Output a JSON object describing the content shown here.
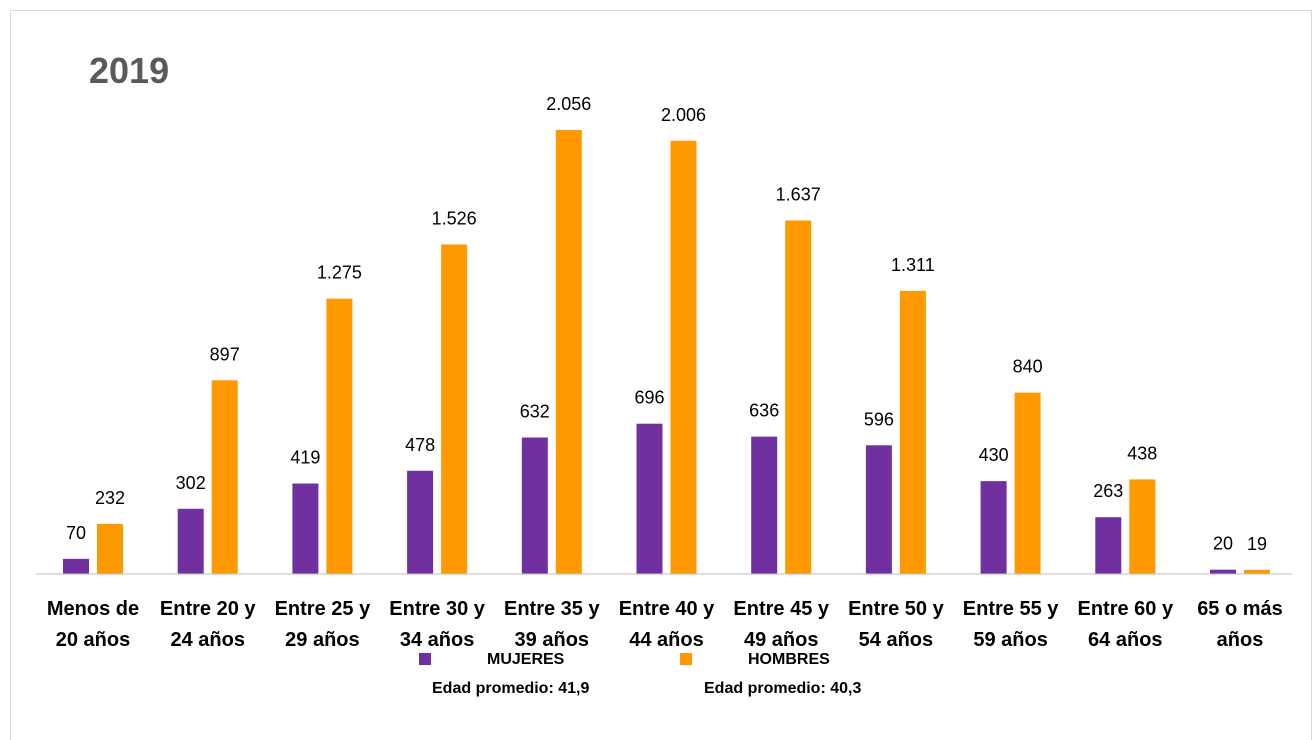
{
  "chart_data": {
    "type": "bar",
    "title": "2019",
    "categories": [
      [
        "Menos de",
        "20 años"
      ],
      [
        "Entre 20 y",
        "24 años"
      ],
      [
        "Entre 25 y",
        "29 años"
      ],
      [
        "Entre 30 y",
        "34 años"
      ],
      [
        "Entre 35 y",
        "39 años"
      ],
      [
        "Entre 40 y",
        "44 años"
      ],
      [
        "Entre 45 y",
        "49 años"
      ],
      [
        "Entre 50 y",
        "54 años"
      ],
      [
        "Entre 55 y",
        "59 años"
      ],
      [
        "Entre 60 y",
        "64 años"
      ],
      [
        "65 o más",
        "años"
      ]
    ],
    "series": [
      {
        "name": "MUJERES",
        "color": "#7030a0",
        "values": [
          70,
          302,
          419,
          478,
          632,
          696,
          636,
          596,
          430,
          263,
          20
        ],
        "labels": [
          "70",
          "302",
          "419",
          "478",
          "632",
          "696",
          "636",
          "596",
          "430",
          "263",
          "20"
        ]
      },
      {
        "name": "HOMBRES",
        "color": "#ff9900",
        "values": [
          232,
          897,
          1275,
          1526,
          2056,
          2006,
          1637,
          1311,
          840,
          438,
          19
        ],
        "labels": [
          "232",
          "897",
          "1.275",
          "1.526",
          "2.056",
          "2.006",
          "1.637",
          "1.311",
          "840",
          "438",
          "19"
        ]
      }
    ],
    "ylim": [
      0,
      2056
    ],
    "grid": false,
    "legend_position": "bottom"
  },
  "legend": {
    "mujeres_label": "MUJERES",
    "hombres_label": "HOMBRES",
    "mujeres_avg": "Edad promedio: 41,9",
    "hombres_avg": "Edad promedio: 40,3"
  }
}
